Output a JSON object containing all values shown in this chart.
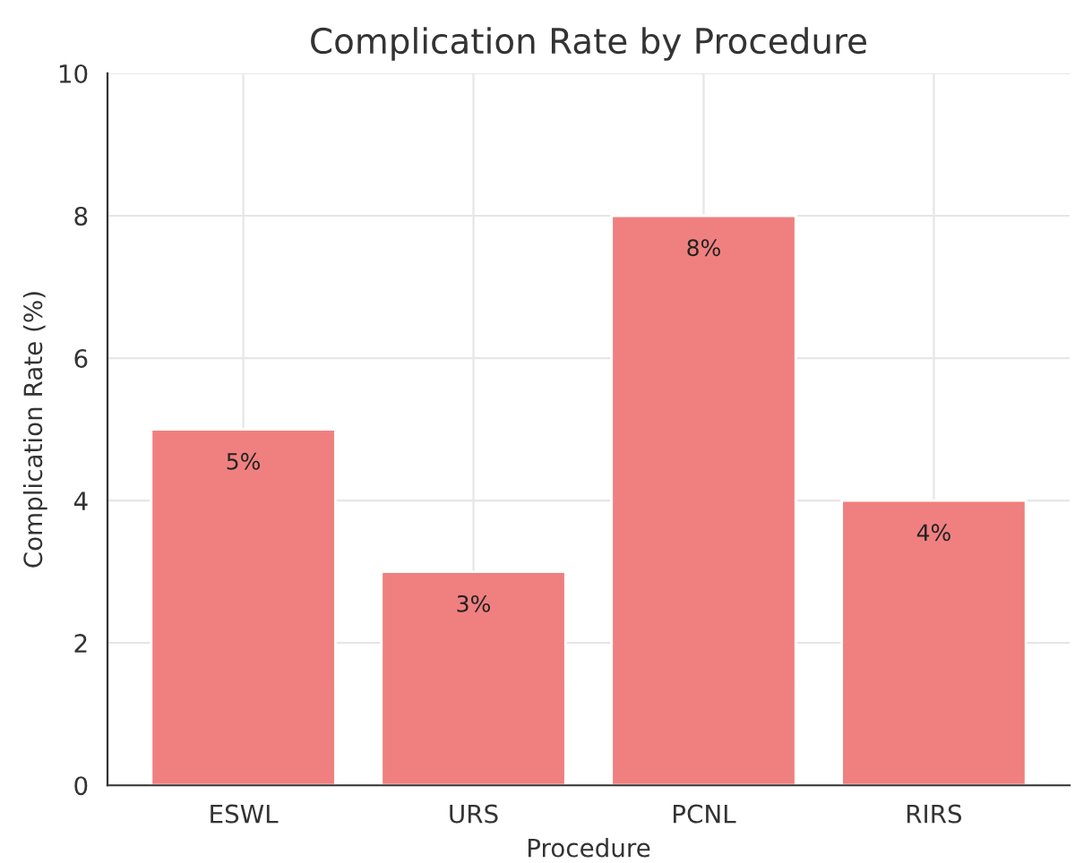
{
  "chart_data": {
    "type": "bar",
    "title": "Complication Rate by Procedure",
    "xlabel": "Procedure",
    "ylabel": "Complication Rate (%)",
    "categories": [
      "ESWL",
      "URS",
      "PCNL",
      "RIRS"
    ],
    "values": [
      5,
      3,
      8,
      4
    ],
    "value_labels": [
      "5%",
      "3%",
      "8%",
      "4%"
    ],
    "color": "#f08080",
    "ylim": [
      0,
      10
    ],
    "yticks": [
      0,
      2,
      4,
      6,
      8,
      10
    ],
    "grid": true
  }
}
